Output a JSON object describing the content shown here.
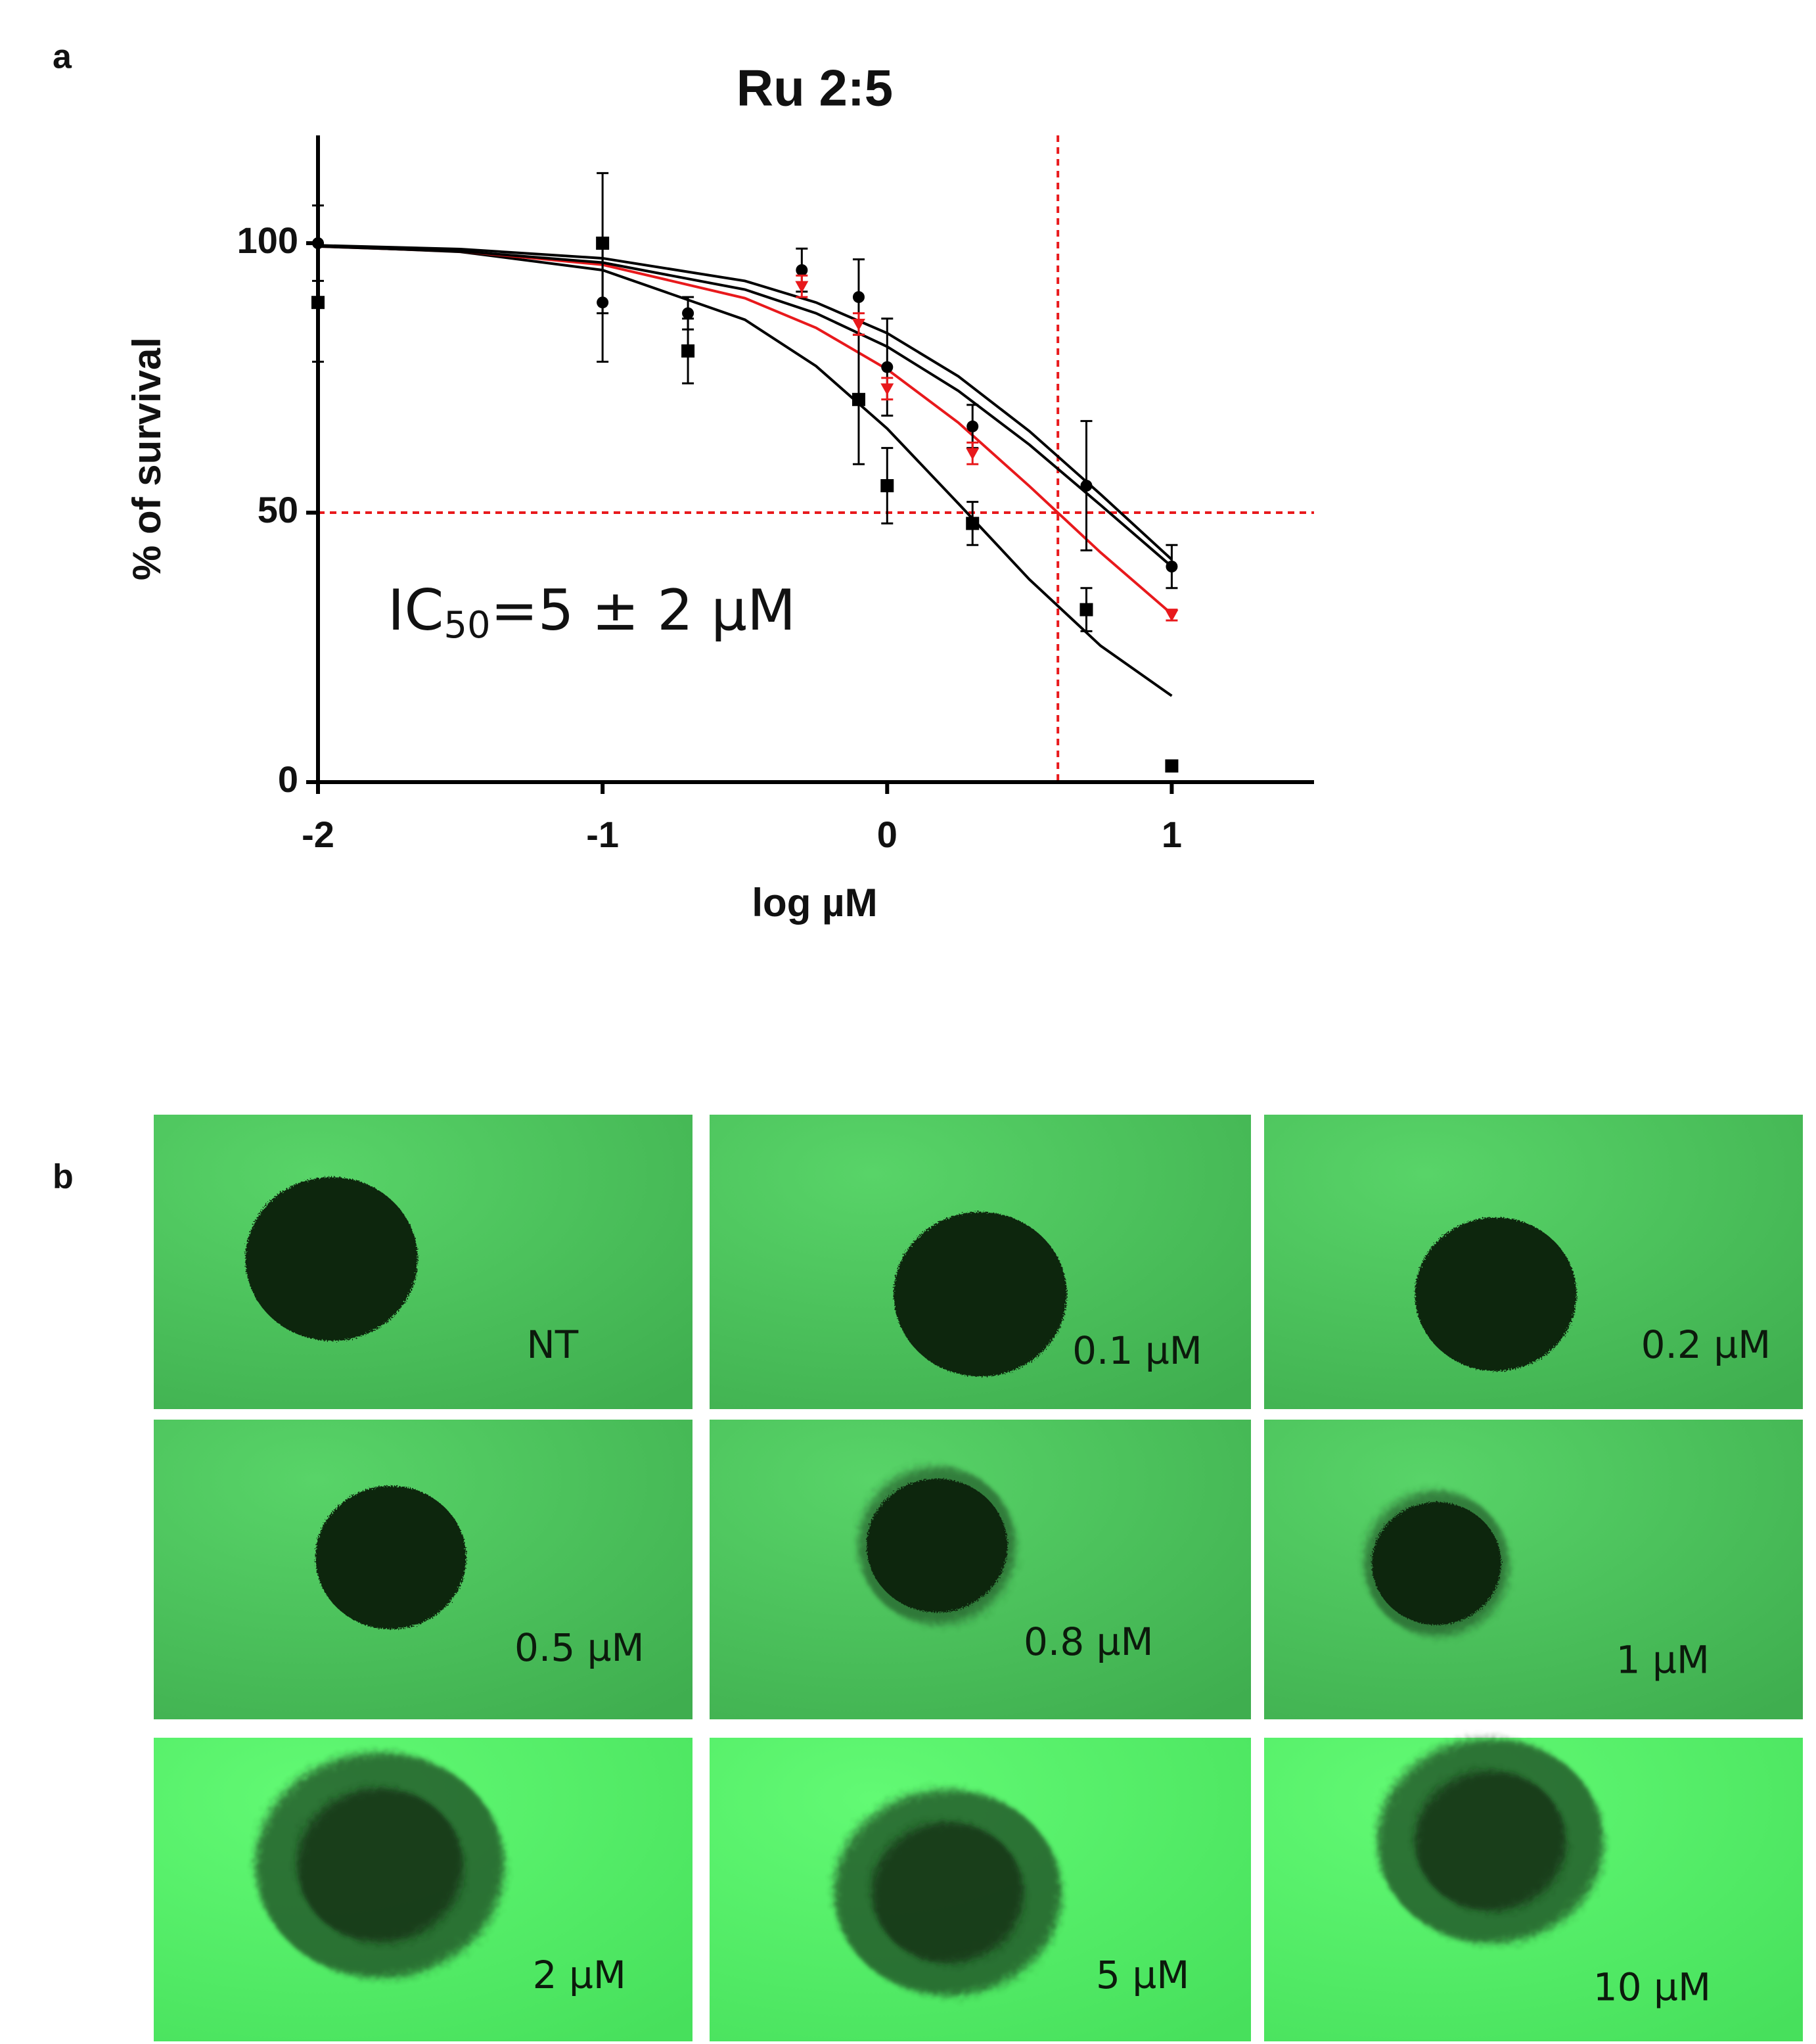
{
  "panel_labels": [
    "a",
    "b"
  ],
  "chart_data": {
    "type": "scatter",
    "title": "Ru 2:5",
    "xlabel": "log µM",
    "ylabel": "% of survival",
    "annotation": [
      "IC",
      "50",
      "=5 ± 2 µM"
    ],
    "xlim": [
      -2,
      1.5
    ],
    "ylim": [
      0,
      120
    ],
    "xticks": [
      -2,
      -1,
      0,
      1
    ],
    "yticks": [
      0,
      50,
      100
    ],
    "ref_x": 0.6,
    "ref_y": 50,
    "ref_color": "#e8191c",
    "series": [
      {
        "marker": "square",
        "color": "#000000",
        "x": [
          -2,
          -1,
          -0.7,
          -0.3,
          -0.1,
          0,
          0.3,
          0.7,
          1
        ],
        "values": [
          89,
          100,
          80,
          null,
          71,
          55,
          48,
          32,
          3
        ],
        "errors": [
          11,
          13,
          6,
          null,
          12,
          7,
          4,
          4,
          1
        ]
      },
      {
        "marker": "circle",
        "color": "#000000",
        "x": [
          -2,
          -1,
          -0.7,
          -0.3,
          -0.1,
          0,
          0.3,
          0.7,
          1
        ],
        "values": [
          100,
          89,
          87,
          95,
          90,
          77,
          66,
          55,
          40
        ],
        "errors": [
          7,
          11,
          3,
          4,
          7,
          9,
          4,
          12,
          4
        ]
      },
      {
        "marker": "triangle",
        "color": "#e8191c",
        "x": [
          -2,
          -1,
          -0.7,
          -0.3,
          -0.1,
          0,
          0.3,
          0.7,
          1
        ],
        "values": [
          null,
          null,
          null,
          92,
          85,
          73,
          61,
          null,
          31
        ],
        "errors": [
          null,
          null,
          null,
          2,
          2,
          2,
          2,
          null,
          1
        ]
      }
    ],
    "curves": [
      {
        "color": "#000000",
        "x": [
          -2,
          -1.5,
          -1,
          -0.5,
          -0.25,
          0,
          0.25,
          0.5,
          0.75,
          1
        ],
        "values": [
          99.5,
          98.4,
          95.0,
          85.8,
          77.2,
          65.6,
          51.7,
          37.6,
          25.3,
          16.0
        ]
      },
      {
        "color": "#e8191c",
        "x": [
          -2,
          -1.5,
          -1,
          -0.5,
          -0.25,
          0,
          0.25,
          0.5,
          0.75,
          1
        ],
        "values": [
          99.4,
          98.5,
          96.0,
          89.8,
          84.3,
          76.6,
          66.7,
          54.9,
          42.6,
          31.2
        ]
      },
      {
        "color": "#000000",
        "x": [
          -2,
          -1.5,
          -1,
          -0.5,
          -0.25,
          0,
          0.25,
          0.5,
          0.75,
          1
        ],
        "values": [
          99.4,
          98.5,
          96.4,
          91.4,
          87.0,
          80.8,
          72.6,
          62.6,
          51.4,
          40.0
        ]
      },
      {
        "color": "#000000",
        "x": [
          -2,
          -1.5,
          -1,
          -0.5,
          -0.25,
          0,
          0.25,
          0.5,
          0.75,
          1
        ],
        "values": [
          99.6,
          98.9,
          97.2,
          93.0,
          89.0,
          83.3,
          75.3,
          65.1,
          53.4,
          41.3
        ]
      }
    ]
  },
  "images": {
    "panels": [
      {
        "label": "NT"
      },
      {
        "label": "0.1 µM"
      },
      {
        "label": "0.2 µM"
      },
      {
        "label": "0.5 µM"
      },
      {
        "label": "0.8 µM"
      },
      {
        "label": "1 µM"
      },
      {
        "label": "2 µM"
      },
      {
        "label": "5 µM"
      },
      {
        "label": "10 µM"
      }
    ]
  }
}
